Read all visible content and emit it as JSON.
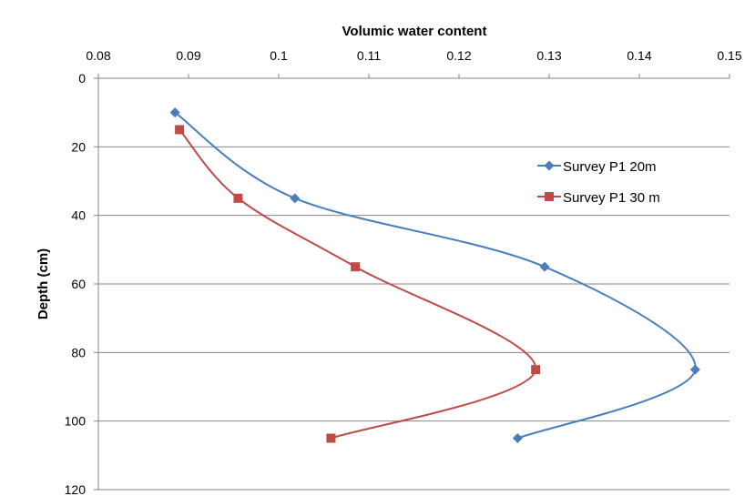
{
  "chart_data": {
    "type": "scatter",
    "xlabel": "Volumic water content",
    "ylabel": "Depth (cm)",
    "x_axis_position": "top",
    "y_axis_reversed": true,
    "xlim": [
      0.08,
      0.15
    ],
    "ylim": [
      0,
      120
    ],
    "x_ticks": [
      "0.08",
      "0.09",
      "0.1",
      "0.11",
      "0.12",
      "0.13",
      "0.14",
      "0.15"
    ],
    "y_ticks": [
      "0",
      "20",
      "40",
      "60",
      "80",
      "100",
      "120"
    ],
    "grid": "horizontal",
    "legend": "right",
    "series": [
      {
        "name": "Survey P1 20m",
        "color": "#4a7ebb",
        "marker": "diamond",
        "points": [
          {
            "x": 0.0885,
            "y": 10
          },
          {
            "x": 0.1018,
            "y": 35
          },
          {
            "x": 0.1295,
            "y": 55
          },
          {
            "x": 0.1462,
            "y": 85
          },
          {
            "x": 0.1265,
            "y": 105
          }
        ]
      },
      {
        "name": "Survey P1 30 m",
        "color": "#be4b48",
        "marker": "square",
        "points": [
          {
            "x": 0.089,
            "y": 15
          },
          {
            "x": 0.0955,
            "y": 35
          },
          {
            "x": 0.1085,
            "y": 55
          },
          {
            "x": 0.1285,
            "y": 85
          },
          {
            "x": 0.1058,
            "y": 105
          }
        ]
      }
    ]
  }
}
